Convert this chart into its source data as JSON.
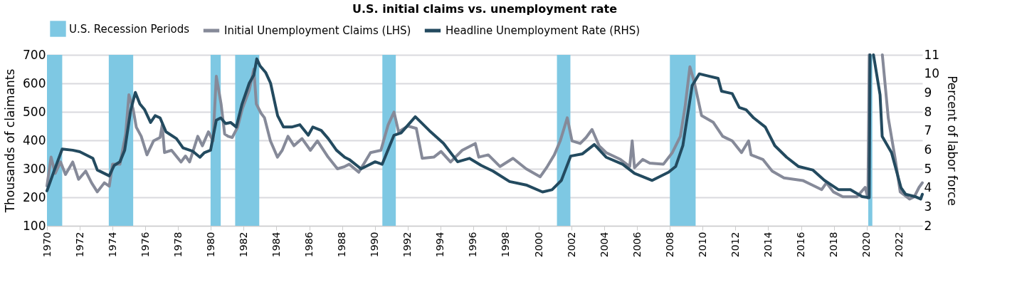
{
  "chart_data": {
    "type": "line",
    "title": "U.S. initial claims vs.  unemployment rate",
    "ylabel": "Thousands of claimants",
    "y2label": "Percent of labor force",
    "xlim": [
      1970,
      2023.4
    ],
    "xticks": [
      1970,
      1972,
      1974,
      1976,
      1978,
      1980,
      1982,
      1984,
      1986,
      1988,
      1990,
      1992,
      1994,
      1996,
      1998,
      2000,
      2002,
      2004,
      2006,
      2008,
      2010,
      2012,
      2014,
      2016,
      2018,
      2020,
      2022
    ],
    "ylim": [
      100,
      700
    ],
    "yticks": [
      100,
      200,
      300,
      400,
      500,
      600,
      700
    ],
    "y2lim": [
      2,
      11
    ],
    "y2ticks": [
      2,
      3,
      4,
      5,
      6,
      7,
      8,
      9,
      10,
      11
    ],
    "grid": "y",
    "legend": "top",
    "marker": "none",
    "line_style": "solid",
    "bands": [
      {
        "axis": "x",
        "from": 1970.0,
        "to": 1970.93,
        "label": "U.S. Recession Periods",
        "color": "#7ec8e3"
      },
      {
        "axis": "x",
        "from": 1973.77,
        "to": 1975.26,
        "color": "#7ec8e3"
      },
      {
        "axis": "x",
        "from": 1979.98,
        "to": 1980.6,
        "color": "#7ec8e3"
      },
      {
        "axis": "x",
        "from": 1981.48,
        "to": 1982.95,
        "color": "#7ec8e3"
      },
      {
        "axis": "x",
        "from": 1990.46,
        "to": 1991.28,
        "color": "#7ec8e3"
      },
      {
        "axis": "x",
        "from": 2001.11,
        "to": 2001.93,
        "color": "#7ec8e3"
      },
      {
        "axis": "x",
        "from": 2008.0,
        "to": 2009.57,
        "color": "#7ec8e3"
      },
      {
        "axis": "x",
        "from": 2020.1,
        "to": 2020.35,
        "color": "#7ec8e3"
      }
    ],
    "series": [
      {
        "name": "Initial Unemployment Claims (LHS)",
        "color": "#868a99",
        "x": [
          1970.0,
          1970.25,
          1970.5,
          1970.83,
          1971.13,
          1971.57,
          1971.93,
          1972.36,
          1972.72,
          1973.07,
          1973.5,
          1973.8,
          1974.0,
          1974.45,
          1974.8,
          1975.0,
          1975.25,
          1975.45,
          1975.75,
          1976.1,
          1976.5,
          1976.9,
          1977.03,
          1977.17,
          1977.6,
          1978.18,
          1978.45,
          1978.7,
          1979.2,
          1979.48,
          1979.85,
          1980.13,
          1980.33,
          1980.62,
          1980.84,
          1981.05,
          1981.3,
          1981.63,
          1981.92,
          1982.34,
          1982.62,
          1982.77,
          1983.06,
          1983.27,
          1983.63,
          1984.06,
          1984.35,
          1984.7,
          1985.07,
          1985.56,
          1986.07,
          1986.5,
          1987.15,
          1987.72,
          1988.16,
          1988.44,
          1989.02,
          1989.74,
          1990.37,
          1990.81,
          1991.17,
          1991.45,
          1992.02,
          1992.53,
          1992.89,
          1993.6,
          1994.04,
          1994.62,
          1995.33,
          1996.13,
          1996.34,
          1996.92,
          1997.64,
          1998.43,
          1999.23,
          2000.09,
          2000.52,
          2000.95,
          2001.31,
          2001.74,
          2002.03,
          2002.53,
          2002.89,
          2003.25,
          2003.68,
          2004.11,
          2004.98,
          2005.55,
          2005.7,
          2005.84,
          2006.34,
          2006.77,
          2007.6,
          2008.15,
          2008.64,
          2008.93,
          2009.22,
          2009.5,
          2009.93,
          2010.65,
          2011.22,
          2011.8,
          2012.37,
          2012.8,
          2012.95,
          2013.67,
          2014.24,
          2014.96,
          2016.11,
          2016.68,
          2017.26,
          2017.55,
          2017.97,
          2018.55,
          2019.41,
          2019.91,
          2020.08,
          2020.16,
          2020.5,
          2020.96,
          2021.32,
          2021.75,
          2022.05,
          2022.62,
          2022.91,
          2023.2,
          2023.4
        ],
        "values": [
          240,
          341,
          284,
          324,
          280,
          324,
          263,
          292,
          251,
          219,
          251,
          239,
          316,
          316,
          422,
          560,
          511,
          446,
          414,
          349,
          398,
          410,
          454,
          357,
          365,
          324,
          345,
          324,
          414,
          381,
          430,
          398,
          625,
          528,
          422,
          414,
          410,
          446,
          511,
          576,
          650,
          528,
          495,
          479,
          398,
          341,
          365,
          414,
          381,
          406,
          365,
          398,
          341,
          300,
          308,
          316,
          288,
          357,
          365,
          454,
          499,
          430,
          450,
          442,
          337,
          341,
          361,
          324,
          365,
          389,
          341,
          349,
          308,
          337,
          300,
          272,
          308,
          349,
          398,
          479,
          398,
          389,
          410,
          438,
          381,
          357,
          333,
          308,
          398,
          304,
          333,
          320,
          316,
          357,
          414,
          519,
          658,
          601,
          487,
          463,
          414,
          398,
          357,
          398,
          349,
          333,
          292,
          268,
          259,
          243,
          227,
          251,
          219,
          202,
          202,
          235,
          198,
          700,
          null,
          700,
          479,
          333,
          219,
          194,
          202,
          235,
          251
        ]
      },
      {
        "name": "Headline Unemployment Rate (RHS)",
        "color": "#234a5f",
        "axis": "y2",
        "x": [
          1970.0,
          1970.43,
          1970.93,
          1971.57,
          1972.0,
          1972.8,
          1973.07,
          1973.8,
          1974.1,
          1974.45,
          1974.74,
          1975.1,
          1975.39,
          1975.67,
          1975.96,
          1976.32,
          1976.6,
          1976.9,
          1977.26,
          1977.9,
          1978.3,
          1978.9,
          1979.33,
          1979.6,
          1979.98,
          1980.33,
          1980.6,
          1980.9,
          1981.2,
          1981.55,
          1981.9,
          1982.34,
          1982.62,
          1982.8,
          1982.99,
          1983.35,
          1983.64,
          1984.07,
          1984.43,
          1984.93,
          1985.43,
          1985.94,
          1986.22,
          1986.73,
          1987.16,
          1987.66,
          1988.16,
          1988.44,
          1989.16,
          1990.02,
          1990.45,
          1991.17,
          1991.6,
          1992.47,
          1993.33,
          1994.19,
          1995.05,
          1995.77,
          1996.49,
          1997.21,
          1998.22,
          1999.23,
          2000.23,
          2000.81,
          2001.38,
          2001.95,
          2002.67,
          2003.39,
          2004.11,
          2005.12,
          2005.84,
          2006.92,
          2007.92,
          2008.35,
          2008.79,
          2009.36,
          2009.79,
          2010.37,
          2010.94,
          2011.15,
          2011.8,
          2012.23,
          2012.65,
          2013.11,
          2013.82,
          2014.4,
          2015.12,
          2015.85,
          2016.71,
          2017.43,
          2018.29,
          2019.01,
          2019.73,
          2020.16,
          2020.21,
          2020.3,
          2020.42,
          2020.82,
          2020.95,
          2021.52,
          2022.1,
          2022.38,
          2022.95,
          2023.3,
          2023.4
        ],
        "values": [
          3.84,
          4.88,
          6.04,
          5.98,
          5.9,
          5.55,
          4.94,
          4.63,
          5.18,
          5.37,
          5.98,
          8.05,
          9.02,
          8.41,
          8.11,
          7.44,
          7.8,
          7.68,
          6.95,
          6.59,
          6.1,
          5.92,
          5.61,
          5.85,
          5.98,
          7.56,
          7.68,
          7.38,
          7.44,
          7.2,
          8.41,
          9.51,
          9.94,
          10.79,
          10.43,
          10.06,
          9.51,
          7.8,
          7.2,
          7.2,
          7.32,
          6.77,
          7.2,
          7.02,
          6.59,
          5.98,
          5.61,
          5.49,
          5.0,
          5.37,
          5.24,
          6.77,
          6.89,
          7.74,
          7.01,
          6.34,
          5.37,
          5.55,
          5.18,
          4.88,
          4.33,
          4.15,
          3.78,
          3.9,
          4.39,
          5.67,
          5.79,
          6.28,
          5.61,
          5.24,
          4.76,
          4.39,
          4.82,
          5.12,
          6.22,
          9.39,
          10.0,
          9.88,
          9.76,
          9.09,
          8.96,
          8.23,
          8.11,
          7.68,
          7.2,
          6.22,
          5.61,
          5.12,
          4.94,
          4.39,
          3.9,
          3.9,
          3.54,
          3.48,
          11,
          null,
          11,
          8.9,
          6.71,
          5.85,
          4.0,
          3.66,
          3.54,
          3.41,
          3.66
        ]
      }
    ]
  }
}
